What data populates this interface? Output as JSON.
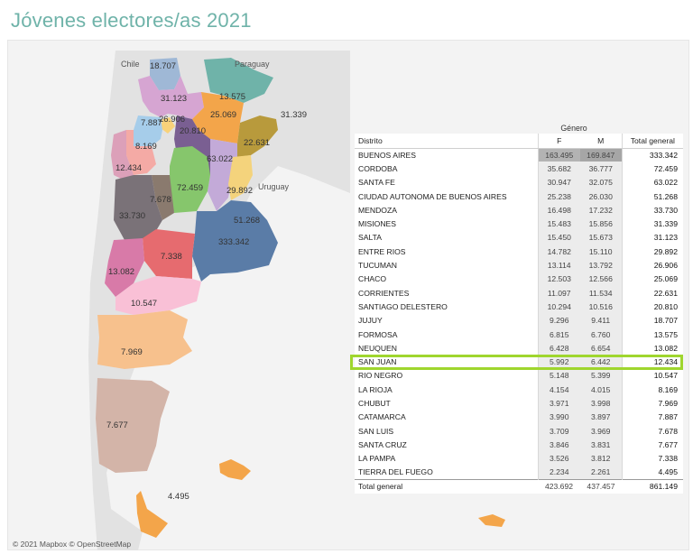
{
  "title": "Jóvenes electores/as 2021",
  "attribution": "© 2021 Mapbox © OpenStreetMap",
  "map": {
    "countries": [
      "Chile",
      "Paraguay",
      "Uruguay"
    ],
    "labels": [
      "18.707",
      "31.123",
      "13.575",
      "31.339",
      "26.906",
      "25.069",
      "7.887",
      "20.810",
      "22.631",
      "8.169",
      "63.022",
      "12.434",
      "72.459",
      "29.892",
      "7.678",
      "33.730",
      "51.268",
      "333.342",
      "7.338",
      "13.082",
      "10.547",
      "7.969",
      "7.677",
      "4.495"
    ]
  },
  "table": {
    "group_header": "Género",
    "columns": [
      "Distrito",
      "F",
      "M",
      "Total general"
    ],
    "rows": [
      {
        "distrito": "BUENOS AIRES",
        "f": "163.495",
        "m": "169.847",
        "total": "333.342"
      },
      {
        "distrito": "CORDOBA",
        "f": "35.682",
        "m": "36.777",
        "total": "72.459"
      },
      {
        "distrito": "SANTA FE",
        "f": "30.947",
        "m": "32.075",
        "total": "63.022"
      },
      {
        "distrito": "CIUDAD AUTONOMA DE BUENOS AIRES",
        "f": "25.238",
        "m": "26.030",
        "total": "51.268"
      },
      {
        "distrito": "MENDOZA",
        "f": "16.498",
        "m": "17.232",
        "total": "33.730"
      },
      {
        "distrito": "MISIONES",
        "f": "15.483",
        "m": "15.856",
        "total": "31.339"
      },
      {
        "distrito": "SALTA",
        "f": "15.450",
        "m": "15.673",
        "total": "31.123"
      },
      {
        "distrito": "ENTRE RIOS",
        "f": "14.782",
        "m": "15.110",
        "total": "29.892"
      },
      {
        "distrito": "TUCUMAN",
        "f": "13.114",
        "m": "13.792",
        "total": "26.906"
      },
      {
        "distrito": "CHACO",
        "f": "12.503",
        "m": "12.566",
        "total": "25.069"
      },
      {
        "distrito": "CORRIENTES",
        "f": "11.097",
        "m": "11.534",
        "total": "22.631"
      },
      {
        "distrito": "SANTIAGO DELESTERO",
        "f": "10.294",
        "m": "10.516",
        "total": "20.810"
      },
      {
        "distrito": "JUJUY",
        "f": "9.296",
        "m": "9.411",
        "total": "18.707"
      },
      {
        "distrito": "FORMOSA",
        "f": "6.815",
        "m": "6.760",
        "total": "13.575"
      },
      {
        "distrito": "NEUQUEN",
        "f": "6.428",
        "m": "6.654",
        "total": "13.082"
      },
      {
        "distrito": "SAN JUAN",
        "f": "5.992",
        "m": "6.442",
        "total": "12.434"
      },
      {
        "distrito": "RIO NEGRO",
        "f": "5.148",
        "m": "5.399",
        "total": "10.547"
      },
      {
        "distrito": "LA RIOJA",
        "f": "4.154",
        "m": "4.015",
        "total": "8.169"
      },
      {
        "distrito": "CHUBUT",
        "f": "3.971",
        "m": "3.998",
        "total": "7.969"
      },
      {
        "distrito": "CATAMARCA",
        "f": "3.990",
        "m": "3.897",
        "total": "7.887"
      },
      {
        "distrito": "SAN LUIS",
        "f": "3.709",
        "m": "3.969",
        "total": "7.678"
      },
      {
        "distrito": "SANTA CRUZ",
        "f": "3.846",
        "m": "3.831",
        "total": "7.677"
      },
      {
        "distrito": "LA PAMPA",
        "f": "3.526",
        "m": "3.812",
        "total": "7.338"
      },
      {
        "distrito": "TIERRA DEL FUEGO",
        "f": "2.234",
        "m": "2.261",
        "total": "4.495"
      }
    ],
    "total_row": {
      "distrito": "Total general",
      "f": "423.692",
      "m": "437.457",
      "total": "861.149"
    }
  },
  "highlight_color": "#9fd62e"
}
